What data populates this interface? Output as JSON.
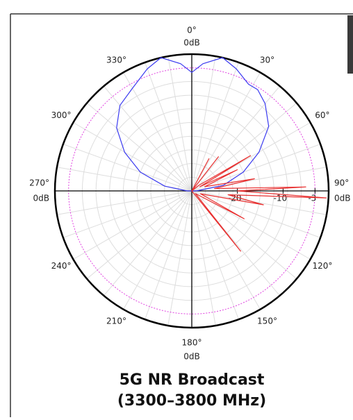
{
  "chart_data": {
    "type": "polar",
    "title": [
      "5G NR Broadcast",
      "(3300–3800 MHz)"
    ],
    "rlim": [
      -30,
      0
    ],
    "rticks": [
      -20,
      -10,
      -3
    ],
    "rgrid": [
      -27,
      -24,
      -21,
      -18,
      -15,
      -12,
      -9,
      -6
    ],
    "reference_circle": {
      "value": -3,
      "color": "#e040e0"
    },
    "thetaticks": [
      {
        "value": 0,
        "label": "0°"
      },
      {
        "value": 30,
        "label": "30°"
      },
      {
        "value": 60,
        "label": "60°"
      },
      {
        "value": 90,
        "label": "90°"
      },
      {
        "value": 120,
        "label": "120°"
      },
      {
        "value": 150,
        "label": "150°"
      },
      {
        "value": 180,
        "label": "180°"
      },
      {
        "value": 210,
        "label": "210°"
      },
      {
        "value": 240,
        "label": "240°"
      },
      {
        "value": 270,
        "label": "270°"
      },
      {
        "value": 300,
        "label": "300°"
      },
      {
        "value": 330,
        "label": "330°"
      }
    ],
    "thetagrid": [
      0,
      10,
      20,
      30,
      40,
      50,
      60,
      70,
      80,
      90,
      100,
      110,
      120,
      130,
      140,
      150,
      160,
      170,
      180,
      190,
      200,
      210,
      220,
      230,
      240,
      250,
      260,
      270,
      280,
      290,
      300,
      310,
      320,
      330,
      340,
      350
    ],
    "cardinal_labels": [
      {
        "theta": 0,
        "label": "0dB"
      },
      {
        "theta": 90,
        "label": "0dB"
      },
      {
        "theta": 180,
        "label": "0dB"
      },
      {
        "theta": 270,
        "label": "0dB"
      }
    ],
    "series": [
      {
        "color": "#3a3af0",
        "theta": [
          180,
          270,
          280,
          290,
          300,
          310,
          320,
          330,
          340,
          347,
          355,
          0,
          5,
          13,
          20,
          28,
          33,
          40,
          50,
          60,
          70,
          80,
          90,
          180
        ],
        "values": [
          -30,
          -29,
          -24,
          -18,
          -13,
          -8.5,
          -5.5,
          -4,
          -1.5,
          0,
          -2,
          -4,
          -2,
          0,
          -1.5,
          -3.5,
          -3.5,
          -5,
          -8,
          -13,
          -18,
          -23,
          -29,
          -30
        ]
      },
      {
        "color": "#e83030",
        "theta": [
          20,
          28,
          33,
          38,
          45,
          52,
          59,
          63,
          65,
          72,
          79,
          84,
          88,
          90,
          93,
          96,
          101,
          108,
          118,
          126,
          141,
          150
        ],
        "values": [
          -30,
          -22,
          -30,
          -20.5,
          -30,
          -28,
          -15,
          -28,
          -19,
          -27,
          -16,
          -25,
          -5,
          -20,
          -0.5,
          -22,
          -14,
          -28,
          -17,
          -29,
          -13,
          -30
        ]
      }
    ]
  }
}
